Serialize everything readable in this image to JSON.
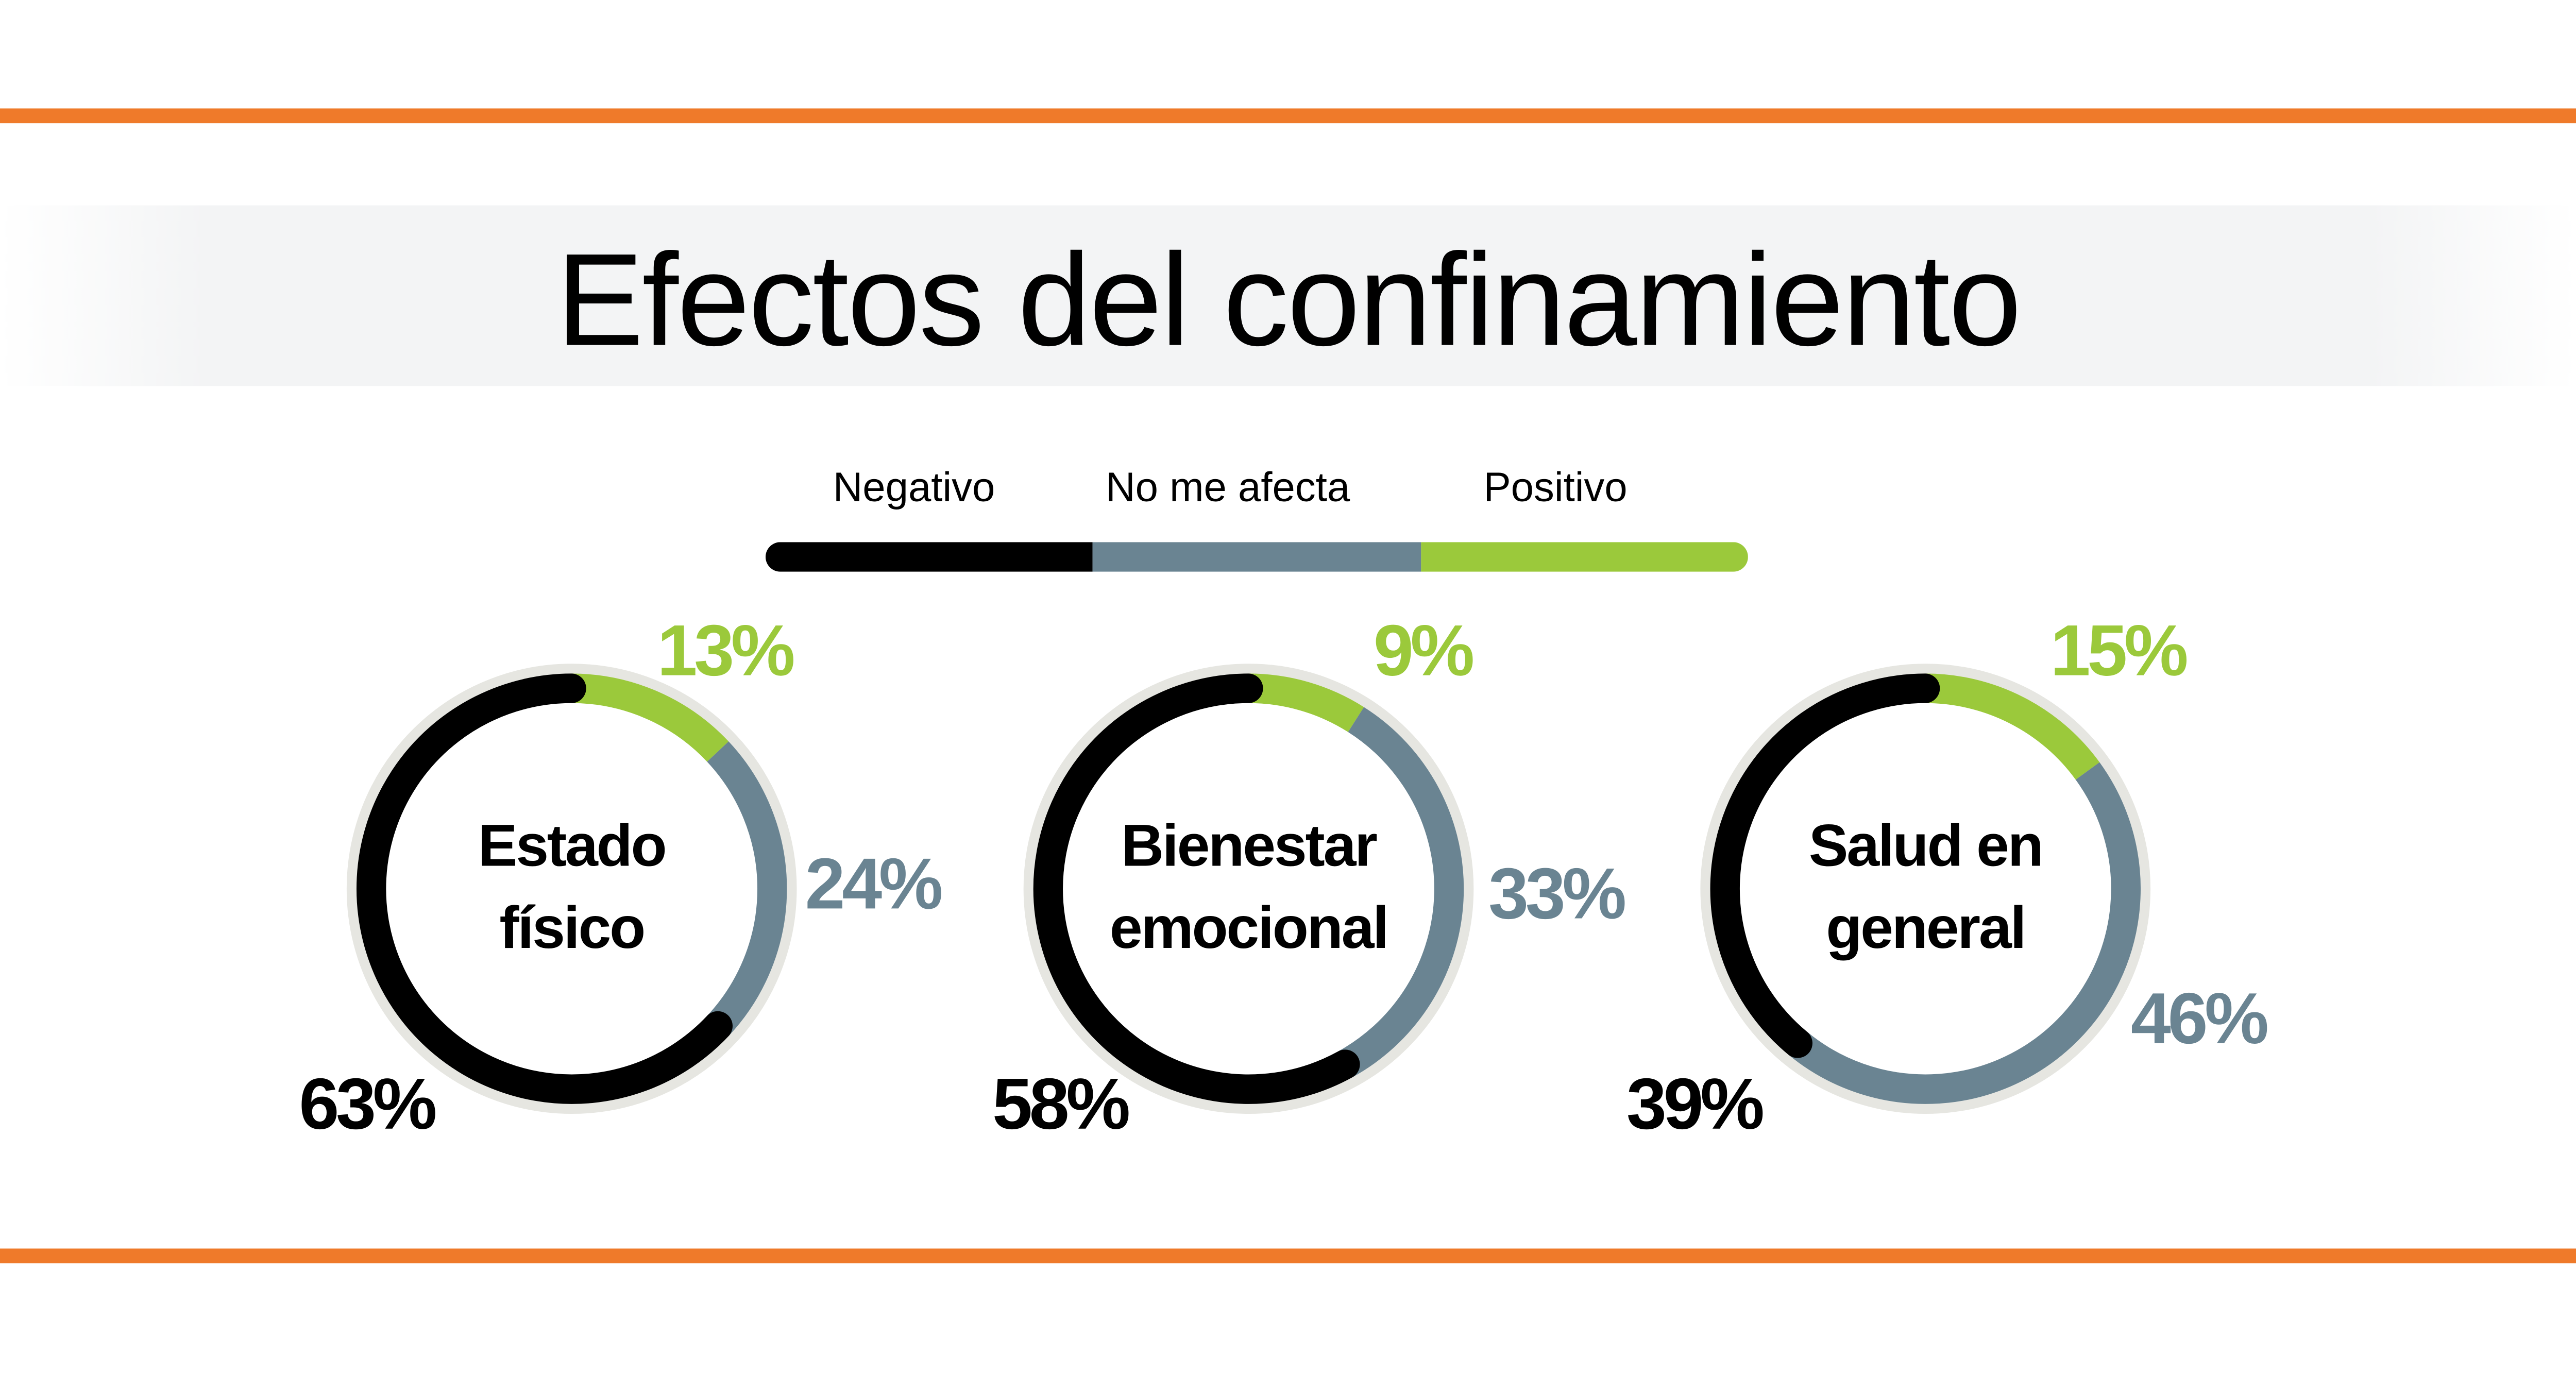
{
  "title": "Efectos del confinamiento",
  "colors": {
    "negative": "#000000",
    "neutral": "#6a8492",
    "positive": "#9bc93b",
    "accent": "#ef7a2a",
    "ring": "#e6e6e1"
  },
  "chart_data": {
    "type": "donut",
    "title": "Efectos del confinamiento",
    "legend": [
      "Negativo",
      "No me afecta",
      "Positivo"
    ],
    "legend_placement": "top",
    "charts": [
      {
        "label": "Estado físico",
        "line1": "Estado",
        "line2": "físico",
        "values": {
          "Negativo": 63,
          "No me afecta": 24,
          "Positivo": 13
        },
        "labels": {
          "neg": "63%",
          "neu": "24%",
          "pos": "13%"
        }
      },
      {
        "label": "Bienestar emocional",
        "line1": "Bienestar",
        "line2": "emocional",
        "values": {
          "Negativo": 58,
          "No me afecta": 33,
          "Positivo": 9
        },
        "labels": {
          "neg": "58%",
          "neu": "33%",
          "pos": "9%"
        }
      },
      {
        "label": "Salud en general",
        "line1": "Salud en",
        "line2": "general",
        "values": {
          "Negativo": 39,
          "No me afecta": 46,
          "Positivo": 15
        },
        "labels": {
          "neg": "39%",
          "neu": "46%",
          "pos": "15%"
        }
      }
    ]
  }
}
